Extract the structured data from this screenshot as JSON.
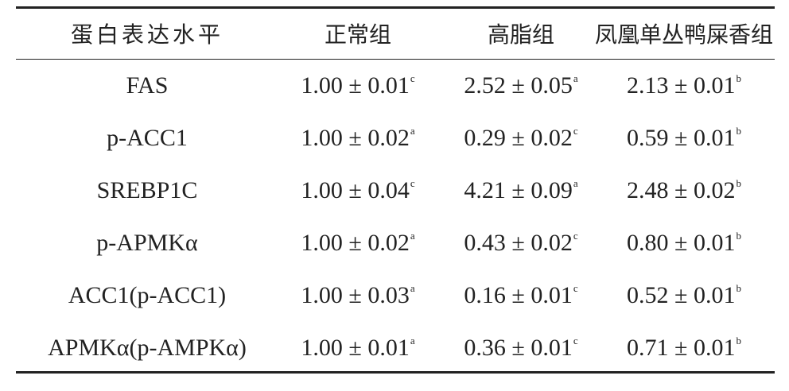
{
  "table": {
    "header": [
      "蛋白表达水平",
      "正常组",
      "高脂组",
      "凤凰单丛鸭屎香组"
    ],
    "rows": [
      {
        "label": "FAS",
        "cells": [
          {
            "text": "1.00 ± 0.01",
            "sup": "c"
          },
          {
            "text": "2.52 ± 0.05",
            "sup": "a"
          },
          {
            "text": "2.13 ± 0.01",
            "sup": "b"
          }
        ]
      },
      {
        "label": "p-ACC1",
        "cells": [
          {
            "text": "1.00 ± 0.02",
            "sup": "a"
          },
          {
            "text": "0.29 ± 0.02",
            "sup": "c"
          },
          {
            "text": "0.59 ± 0.01",
            "sup": "b"
          }
        ]
      },
      {
        "label": "SREBP1C",
        "cells": [
          {
            "text": "1.00 ± 0.04",
            "sup": "c"
          },
          {
            "text": "4.21 ± 0.09",
            "sup": "a"
          },
          {
            "text": "2.48 ± 0.02",
            "sup": "b"
          }
        ]
      },
      {
        "label": "p-APMKα",
        "cells": [
          {
            "text": "1.00 ± 0.02",
            "sup": "a"
          },
          {
            "text": "0.43 ± 0.02",
            "sup": "c"
          },
          {
            "text": "0.80 ± 0.01",
            "sup": "b"
          }
        ]
      },
      {
        "label": "ACC1(p-ACC1)",
        "cells": [
          {
            "text": "1.00 ± 0.03",
            "sup": "a"
          },
          {
            "text": "0.16 ± 0.01",
            "sup": "c"
          },
          {
            "text": "0.52 ± 0.01",
            "sup": "b"
          }
        ]
      },
      {
        "label": "APMKα(p-AMPKα)",
        "cells": [
          {
            "text": "1.00 ± 0.01",
            "sup": "a"
          },
          {
            "text": "0.36 ± 0.01",
            "sup": "c"
          },
          {
            "text": "0.71 ± 0.01",
            "sup": "b"
          }
        ]
      }
    ]
  }
}
